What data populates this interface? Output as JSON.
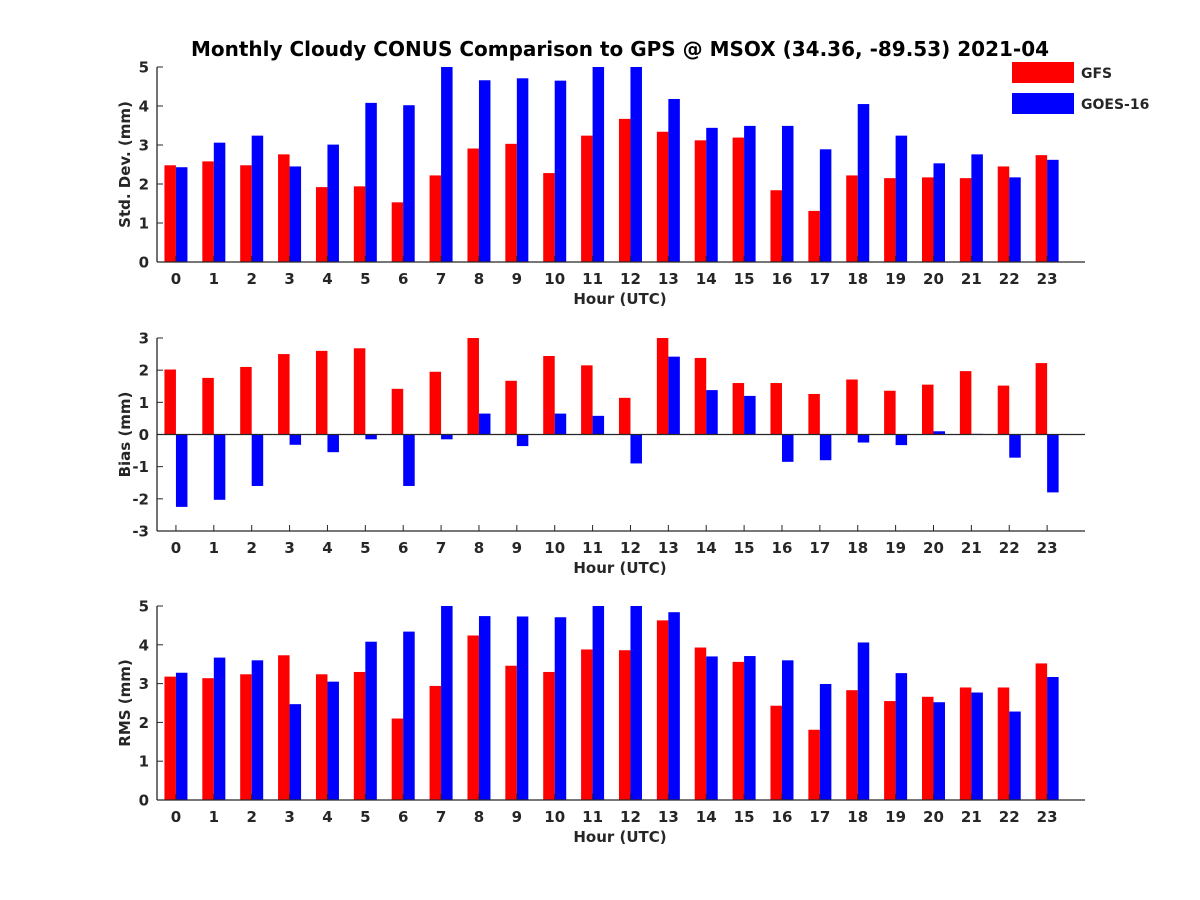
{
  "title": "Monthly Cloudy CONUS Comparison to GPS @ MSOX (34.36, -89.53) 2021-04",
  "legend": [
    {
      "name": "GFS",
      "color": "#ff0000"
    },
    {
      "name": "GOES-16",
      "color": "#0000ff"
    }
  ],
  "chart_data": [
    {
      "type": "bar",
      "xlabel": "Hour (UTC)",
      "ylabel": "Std. Dev. (mm)",
      "ylim": [
        0,
        5
      ],
      "yticks": [
        0,
        1,
        2,
        3,
        4,
        5
      ],
      "categories": [
        0,
        1,
        2,
        3,
        4,
        5,
        6,
        7,
        8,
        9,
        10,
        11,
        12,
        13,
        14,
        15,
        16,
        17,
        18,
        19,
        20,
        21,
        22,
        23
      ],
      "series": [
        {
          "name": "GFS",
          "values": [
            2.48,
            2.58,
            2.48,
            2.76,
            1.92,
            1.94,
            1.53,
            2.22,
            2.91,
            3.03,
            2.28,
            3.24,
            3.67,
            3.34,
            3.12,
            3.19,
            1.84,
            1.31,
            2.22,
            2.15,
            2.17,
            2.15,
            2.45,
            2.74
          ]
        },
        {
          "name": "GOES-16",
          "values": [
            2.43,
            3.06,
            3.24,
            2.45,
            3.01,
            4.08,
            4.02,
            5.0,
            4.66,
            4.71,
            4.65,
            5.0,
            5.0,
            4.18,
            3.44,
            3.49,
            3.49,
            2.89,
            4.05,
            3.24,
            2.53,
            2.76,
            2.17,
            2.62
          ]
        }
      ],
      "grid": false,
      "legend_position": "top-right, outside"
    },
    {
      "type": "bar",
      "xlabel": "Hour (UTC)",
      "ylabel": "Bias (mm)",
      "ylim": [
        -3,
        3
      ],
      "yticks": [
        -3,
        -2,
        -1,
        0,
        1,
        2,
        3
      ],
      "categories": [
        0,
        1,
        2,
        3,
        4,
        5,
        6,
        7,
        8,
        9,
        10,
        11,
        12,
        13,
        14,
        15,
        16,
        17,
        18,
        19,
        20,
        21,
        22,
        23
      ],
      "series": [
        {
          "name": "GFS",
          "values": [
            2.02,
            1.76,
            2.1,
            2.5,
            2.6,
            2.68,
            1.42,
            1.95,
            3.0,
            1.67,
            2.44,
            2.15,
            1.14,
            3.0,
            2.38,
            1.6,
            1.6,
            1.26,
            1.71,
            1.36,
            1.55,
            1.97,
            1.52,
            2.22
          ]
        },
        {
          "name": "GOES-16",
          "values": [
            -2.25,
            -2.03,
            -1.6,
            -0.32,
            -0.55,
            -0.15,
            -1.6,
            -0.15,
            0.65,
            -0.36,
            0.65,
            0.58,
            -0.9,
            2.42,
            1.38,
            1.2,
            -0.85,
            -0.8,
            -0.25,
            -0.33,
            0.1,
            0.02,
            -0.72,
            -1.8
          ]
        }
      ],
      "grid": false
    },
    {
      "type": "bar",
      "xlabel": "Hour (UTC)",
      "ylabel": "RMS (mm)",
      "ylim": [
        0,
        5
      ],
      "yticks": [
        0,
        1,
        2,
        3,
        4,
        5
      ],
      "categories": [
        0,
        1,
        2,
        3,
        4,
        5,
        6,
        7,
        8,
        9,
        10,
        11,
        12,
        13,
        14,
        15,
        16,
        17,
        18,
        19,
        20,
        21,
        22,
        23
      ],
      "series": [
        {
          "name": "GFS",
          "values": [
            3.18,
            3.14,
            3.24,
            3.73,
            3.24,
            3.3,
            2.1,
            2.94,
            4.24,
            3.46,
            3.3,
            3.88,
            3.86,
            4.63,
            3.93,
            3.56,
            2.43,
            1.81,
            2.83,
            2.55,
            2.66,
            2.9,
            2.9,
            3.52
          ]
        },
        {
          "name": "GOES-16",
          "values": [
            3.28,
            3.67,
            3.6,
            2.47,
            3.05,
            4.08,
            4.34,
            5.0,
            4.74,
            4.73,
            4.71,
            5.0,
            5.0,
            4.84,
            3.7,
            3.71,
            3.6,
            2.99,
            4.06,
            3.27,
            2.52,
            2.77,
            2.28,
            3.17
          ]
        }
      ],
      "grid": false
    }
  ]
}
